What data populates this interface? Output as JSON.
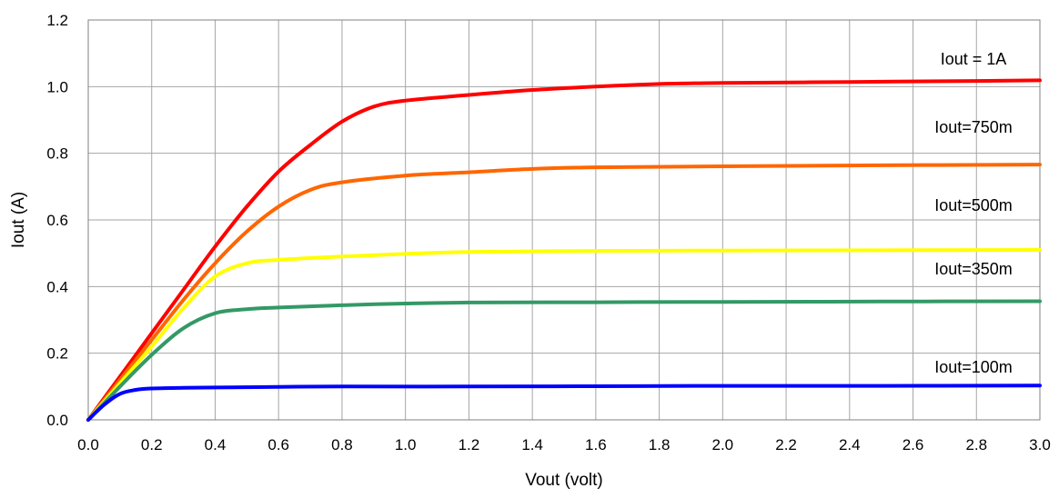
{
  "chart_data": {
    "type": "line",
    "title": "",
    "xlabel": "Vout (volt)",
    "ylabel": "Iout (A)",
    "xlim": [
      0,
      3.0
    ],
    "ylim": [
      0,
      1.2
    ],
    "x_ticks": [
      "0.0",
      "0.2",
      "0.4",
      "0.6",
      "0.8",
      "1.0",
      "1.2",
      "1.4",
      "1.6",
      "1.8",
      "2.0",
      "2.2",
      "2.4",
      "2.6",
      "2.8",
      "3.0"
    ],
    "y_ticks": [
      "0.0",
      "0.2",
      "0.4",
      "0.6",
      "0.8",
      "1.0",
      "1.2"
    ],
    "grid": true,
    "legend": "none",
    "series": [
      {
        "name": "Iout = 1A",
        "color": "#ff0000",
        "points": [
          [
            0,
            0
          ],
          [
            0.1,
            0.13
          ],
          [
            0.2,
            0.26
          ],
          [
            0.3,
            0.39
          ],
          [
            0.4,
            0.52
          ],
          [
            0.5,
            0.64
          ],
          [
            0.6,
            0.745
          ],
          [
            0.7,
            0.825
          ],
          [
            0.8,
            0.895
          ],
          [
            0.9,
            0.94
          ],
          [
            1.0,
            0.958
          ],
          [
            1.2,
            0.975
          ],
          [
            1.4,
            0.99
          ],
          [
            1.6,
            1.0
          ],
          [
            1.8,
            1.008
          ],
          [
            2.0,
            1.011
          ],
          [
            2.4,
            1.014
          ],
          [
            2.8,
            1.017
          ],
          [
            3.0,
            1.019
          ]
        ]
      },
      {
        "name": "Iout=750m",
        "color": "#ff6600",
        "points": [
          [
            0,
            0
          ],
          [
            0.1,
            0.12
          ],
          [
            0.2,
            0.24
          ],
          [
            0.3,
            0.36
          ],
          [
            0.4,
            0.47
          ],
          [
            0.5,
            0.565
          ],
          [
            0.6,
            0.64
          ],
          [
            0.7,
            0.69
          ],
          [
            0.8,
            0.713
          ],
          [
            1.0,
            0.733
          ],
          [
            1.2,
            0.743
          ],
          [
            1.4,
            0.753
          ],
          [
            1.6,
            0.758
          ],
          [
            2.0,
            0.761
          ],
          [
            2.5,
            0.764
          ],
          [
            3.0,
            0.766
          ]
        ]
      },
      {
        "name": "Iout=500m",
        "color": "#ffff00",
        "points": [
          [
            0,
            0
          ],
          [
            0.1,
            0.11
          ],
          [
            0.2,
            0.22
          ],
          [
            0.3,
            0.335
          ],
          [
            0.4,
            0.43
          ],
          [
            0.5,
            0.47
          ],
          [
            0.6,
            0.48
          ],
          [
            0.8,
            0.49
          ],
          [
            1.0,
            0.498
          ],
          [
            1.2,
            0.504
          ],
          [
            1.6,
            0.507
          ],
          [
            2.0,
            0.508
          ],
          [
            2.5,
            0.509
          ],
          [
            3.0,
            0.51
          ]
        ]
      },
      {
        "name": "Iout=350m",
        "color": "#339966",
        "points": [
          [
            0,
            0
          ],
          [
            0.1,
            0.1
          ],
          [
            0.2,
            0.195
          ],
          [
            0.3,
            0.275
          ],
          [
            0.4,
            0.32
          ],
          [
            0.5,
            0.332
          ],
          [
            0.6,
            0.337
          ],
          [
            0.8,
            0.344
          ],
          [
            1.0,
            0.349
          ],
          [
            1.2,
            0.352
          ],
          [
            1.6,
            0.353
          ],
          [
            2.0,
            0.354
          ],
          [
            2.5,
            0.355
          ],
          [
            3.0,
            0.356
          ]
        ]
      },
      {
        "name": "Iout=100m",
        "color": "#0000ff",
        "points": [
          [
            0,
            0
          ],
          [
            0.05,
            0.045
          ],
          [
            0.1,
            0.078
          ],
          [
            0.15,
            0.09
          ],
          [
            0.2,
            0.094
          ],
          [
            0.3,
            0.096
          ],
          [
            0.4,
            0.097
          ],
          [
            0.6,
            0.099
          ],
          [
            0.8,
            0.1
          ],
          [
            1.2,
            0.1
          ],
          [
            1.6,
            0.101
          ],
          [
            2.0,
            0.102
          ],
          [
            2.5,
            0.102
          ],
          [
            3.0,
            0.103
          ]
        ]
      }
    ]
  }
}
